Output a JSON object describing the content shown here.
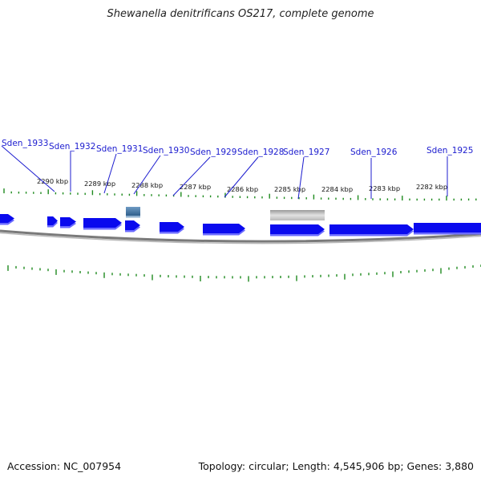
{
  "title": "Shewanella denitrificans OS217, complete genome",
  "accession": "Accession: NC_007954",
  "summary": "Topology: circular; Length: 4,545,906 bp; Genes: 3,880",
  "colors": {
    "gene": "#0a0aee",
    "gene_shadow": "#6b6bff",
    "label": "#1c1ccf",
    "tick": "#1e8a1e",
    "backbone": "#7a7a7a",
    "rna": "#3d6f9c",
    "pseudo": "#c4c4c4"
  },
  "ruler": [
    {
      "label": "2290 kbp",
      "kbp": 2290
    },
    {
      "label": "2289 kbp",
      "kbp": 2289
    },
    {
      "label": "2288 kbp",
      "kbp": 2288
    },
    {
      "label": "2287 kbp",
      "kbp": 2287
    },
    {
      "label": "2286 kbp",
      "kbp": 2286
    },
    {
      "label": "2285 kbp",
      "kbp": 2285
    },
    {
      "label": "2284 kbp",
      "kbp": 2284
    },
    {
      "label": "2283 kbp",
      "kbp": 2283
    },
    {
      "label": "2282 kbp",
      "kbp": 2282
    }
  ],
  "gene_labels": [
    {
      "name": "Sden_1933"
    },
    {
      "name": "Sden_1932"
    },
    {
      "name": "Sden_1931"
    },
    {
      "name": "Sden_1930"
    },
    {
      "name": "Sden_1929"
    },
    {
      "name": "Sden_1928"
    },
    {
      "name": "Sden_1927"
    },
    {
      "name": "Sden_1926"
    },
    {
      "name": "Sden_1925"
    }
  ]
}
